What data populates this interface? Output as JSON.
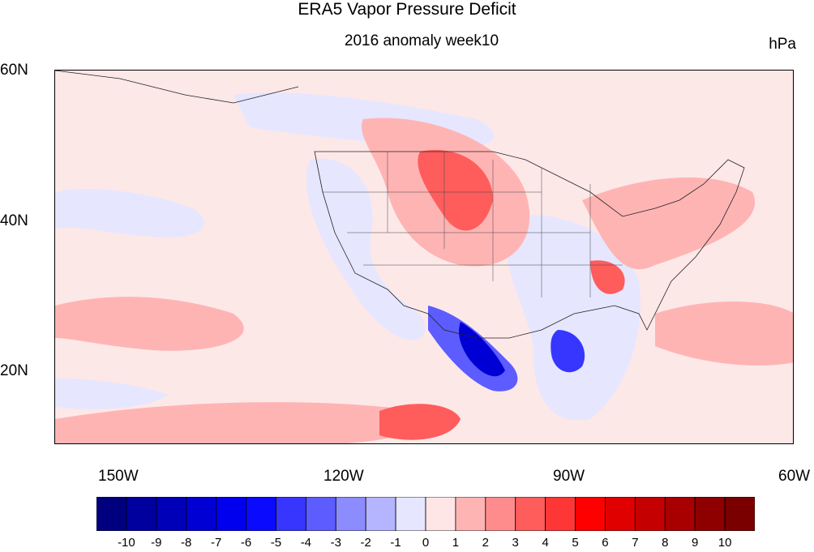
{
  "title": "ERA5 Vapor Pressure Deficit",
  "subtitle": "2016 anomaly week10",
  "units": "hPa",
  "lat_labels": [
    "60N",
    "40N",
    "20N"
  ],
  "lon_labels": [
    "150W",
    "120W",
    "90W",
    "60W"
  ],
  "colorbar": {
    "labels": [
      "-10",
      "-9",
      "-8",
      "-7",
      "-6",
      "-5",
      "-4",
      "-3",
      "-2",
      "-1",
      "0",
      "1",
      "2",
      "3",
      "4",
      "5",
      "6",
      "7",
      "8",
      "9",
      "10"
    ],
    "colors": [
      "#00007f",
      "#00009f",
      "#0000b8",
      "#0000d4",
      "#0000ee",
      "#0a0aff",
      "#3636ff",
      "#5c5cff",
      "#8c8cff",
      "#b4b4ff",
      "#e6e6ff",
      "#ffe6e6",
      "#ffb4b4",
      "#ff8c8c",
      "#ff5c5c",
      "#ff3636",
      "#ff0000",
      "#e00000",
      "#c40000",
      "#a80000",
      "#8e0000",
      "#7a0000"
    ]
  },
  "colors": {
    "background_anomaly": "#fde8e8",
    "slight_negative": "#e6e6ff",
    "strong_negative": "#0000d4",
    "positive_moderate": "#ff8c8c",
    "positive_strong": "#ff3636"
  }
}
